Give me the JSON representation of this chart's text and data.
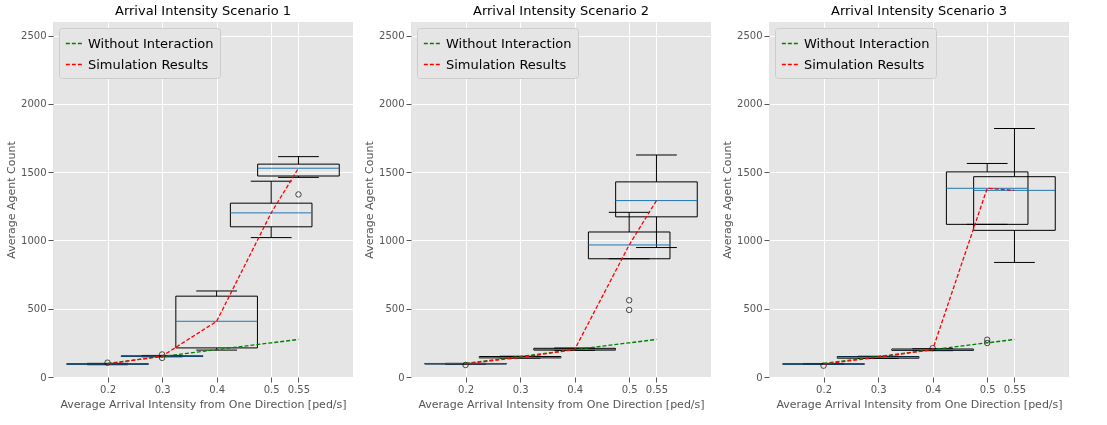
{
  "chart_data": [
    {
      "type": "box",
      "title": "Arrival Intensity Scenario 1",
      "xlabel": "Average Arrival Intensity from One Direction [ped/s]",
      "ylabel": "Average Agent Count",
      "x": [
        0.2,
        0.3,
        0.4,
        0.5,
        0.55
      ],
      "xlim": [
        0.1,
        0.65
      ],
      "xticks": [
        0.2,
        0.3,
        0.4,
        0.5,
        0.55
      ],
      "ylim": [
        0,
        2600
      ],
      "yticks": [
        0,
        500,
        1000,
        1500,
        2000,
        2500
      ],
      "grid": true,
      "legend": "top left",
      "series": [
        {
          "type": "box",
          "color": "#000000",
          "boxes": [
            {
              "low": 90,
              "q1": 93,
              "median": 95,
              "q3": 97,
              "high": 100,
              "outliers": [
                105
              ]
            },
            {
              "low": 148,
              "q1": 150,
              "median": 153,
              "q3": 155,
              "high": 158,
              "outliers": [
                140,
                165
              ]
            },
            {
              "low": 197,
              "q1": 213,
              "median": 408,
              "q3": 592,
              "high": 630
            },
            {
              "low": 1021,
              "q1": 1100,
              "median": 1202,
              "q3": 1273,
              "high": 1434
            },
            {
              "low": 1462,
              "q1": 1472,
              "median": 1529,
              "q3": 1559,
              "high": 1614,
              "outliers": [
                1337
              ]
            }
          ]
        },
        {
          "type": "line",
          "name": "Without Interaction",
          "color": "#008000",
          "line_style": "dashed",
          "values": [
            100,
            150,
            200,
            250,
            275
          ]
        },
        {
          "type": "line",
          "name": "Simulation Results",
          "color": "#ff0000",
          "line_style": "dashed",
          "values": [
            95,
            153,
            408,
            1202,
            1529
          ]
        }
      ]
    },
    {
      "type": "box",
      "title": "Arrival Intensity Scenario 2",
      "xlabel": "Average Arrival Intensity from One Direction [ped/s]",
      "ylabel": "Average Agent Count",
      "x": [
        0.2,
        0.3,
        0.4,
        0.5,
        0.55
      ],
      "xlim": [
        0.1,
        0.65
      ],
      "xticks": [
        0.2,
        0.3,
        0.4,
        0.5,
        0.55
      ],
      "ylim": [
        0,
        2600
      ],
      "yticks": [
        0,
        500,
        1000,
        1500,
        2000,
        2500
      ],
      "grid": true,
      "legend": "top left",
      "series": [
        {
          "type": "box",
          "color": "#000000",
          "boxes": [
            {
              "low": 94,
              "q1": 95,
              "median": 97,
              "q3": 99,
              "high": 100,
              "outliers": [
                88
              ]
            },
            {
              "low": 138,
              "q1": 140,
              "median": 143,
              "q3": 150,
              "high": 152
            },
            {
              "low": 195,
              "q1": 197,
              "median": 201,
              "q3": 210,
              "high": 212
            },
            {
              "low": 866,
              "q1": 866,
              "median": 967,
              "q3": 1062,
              "high": 1206,
              "outliers": [
                562,
                491
              ]
            },
            {
              "low": 948,
              "q1": 1173,
              "median": 1292,
              "q3": 1429,
              "high": 1626
            }
          ]
        },
        {
          "type": "line",
          "name": "Without Interaction",
          "color": "#008000",
          "line_style": "dashed",
          "values": [
            100,
            150,
            200,
            250,
            275
          ]
        },
        {
          "type": "line",
          "name": "Simulation Results",
          "color": "#ff0000",
          "line_style": "dashed",
          "values": [
            97,
            143,
            201,
            967,
            1292
          ]
        }
      ]
    },
    {
      "type": "box",
      "title": "Arrival Intensity Scenario 3",
      "xlabel": "Average Arrival Intensity from One Direction [ped/s]",
      "ylabel": "Average Agent Count",
      "x": [
        0.2,
        0.3,
        0.4,
        0.5,
        0.55
      ],
      "xlim": [
        0.1,
        0.65
      ],
      "xticks": [
        0.2,
        0.3,
        0.4,
        0.5,
        0.55
      ],
      "ylim": [
        0,
        2600
      ],
      "yticks": [
        0,
        500,
        1000,
        1500,
        2000,
        2500
      ],
      "grid": true,
      "legend": "top left",
      "series": [
        {
          "type": "box",
          "color": "#000000",
          "boxes": [
            {
              "low": 92,
              "q1": 93,
              "median": 95,
              "q3": 97,
              "high": 99,
              "outliers": [
                83
              ]
            },
            {
              "low": 136,
              "q1": 138,
              "median": 145,
              "q3": 150,
              "high": 152
            },
            {
              "low": 193,
              "q1": 195,
              "median": 200,
              "q3": 205,
              "high": 207,
              "outliers": [
                211
              ]
            },
            {
              "low": 1118,
              "q1": 1118,
              "median": 1382,
              "q3": 1502,
              "high": 1564,
              "outliers": [
                273,
                249
              ]
            },
            {
              "low": 839,
              "q1": 1074,
              "median": 1367,
              "q3": 1467,
              "high": 1820
            }
          ]
        },
        {
          "type": "line",
          "name": "Without Interaction",
          "color": "#008000",
          "line_style": "dashed",
          "values": [
            100,
            150,
            200,
            250,
            275
          ]
        },
        {
          "type": "line",
          "name": "Simulation Results",
          "color": "#ff0000",
          "line_style": "dashed",
          "values": [
            95,
            145,
            200,
            1382,
            1367
          ]
        }
      ]
    }
  ]
}
